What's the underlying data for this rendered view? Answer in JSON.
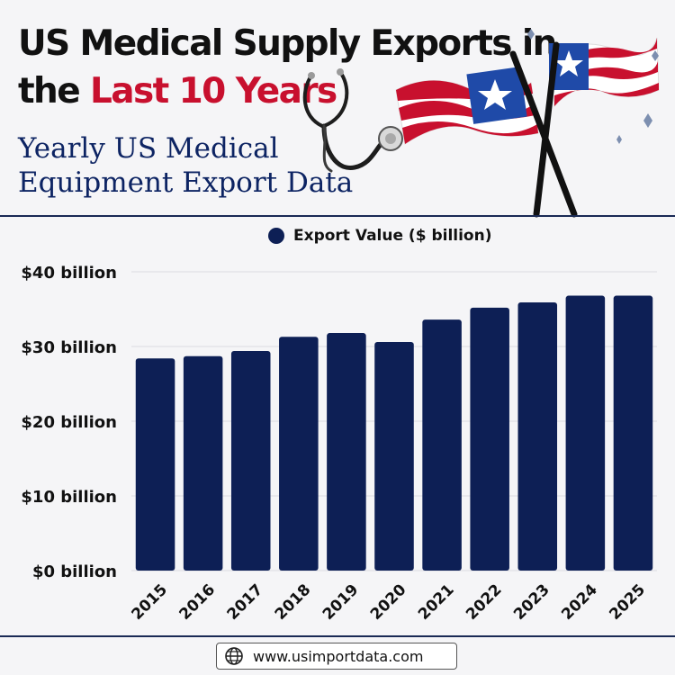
{
  "header": {
    "title_part1": "US Medical Supply Exports in",
    "title_part2": "the",
    "title_highlight": "Last 10 Years",
    "subtitle_line1": "Yearly US Medical",
    "subtitle_line2": "Equipment Export Data"
  },
  "footer": {
    "website": "www.usimportdata.com",
    "icon": "globe-icon"
  },
  "decorations": [
    "stethoscope-icon",
    "us-flag-icon",
    "us-flag-icon",
    "sparkle-icon"
  ],
  "colors": {
    "bar": "#0d1f55",
    "title_highlight": "#c8102e",
    "subtitle": "#0d2463",
    "flag_red": "#c8102e",
    "flag_blue": "#1f4aa8"
  },
  "chart_data": {
    "type": "bar",
    "categories": [
      "2015",
      "2016",
      "2017",
      "2018",
      "2019",
      "2020",
      "2021",
      "2022",
      "2023",
      "2024",
      "2025"
    ],
    "series": [
      {
        "name": "Export Value ($ billion)",
        "values": [
          28.4,
          28.7,
          29.4,
          31.3,
          31.8,
          30.6,
          33.6,
          35.2,
          35.9,
          36.8,
          36.8
        ]
      }
    ],
    "yticks": [
      "$0 billion",
      "$10 billion",
      "$20 billion",
      "$30 billion",
      "$40 billion"
    ],
    "ytick_values": [
      0,
      10,
      20,
      30,
      40
    ],
    "ylim": [
      0,
      40
    ],
    "legend_position": "top-center",
    "grid": true,
    "xlabel": "",
    "ylabel": ""
  }
}
